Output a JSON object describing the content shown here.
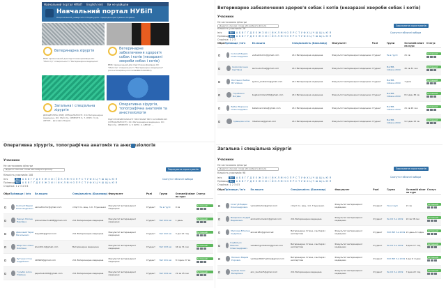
{
  "portal": {
    "nav": [
      "Навчальний портал НУБіП",
      "English (en)",
      "Ви не увійшли"
    ],
    "title": "Навчальний портал НУБіП",
    "subtitle": "Національний університет біоресурсів і природокористування України"
  },
  "tiles": [
    {
      "title": "Ветеринарна хірургія",
      "desc": "ВМК призначений для підготовки фахівців ОС \"Магістр\" спеціальності \"Ветеринарна медицина\""
    },
    {
      "title": "Ветеринарне забезпечення здоров'я собак і котів (незаразні хвороби собак і котів)",
      "desc": "ВМК призначений для підготовки фахівців ОС \"Магістр\" спеціальності \"Ветеринарна медицина\" (kod-article/title-prim=1994B6755455B7)"
    },
    {
      "title": "Загальна і спеціальна хірургія",
      "desc": "ДИСЦИПЛІНА (PRE) СПЕЦІАЛЬНОСТІ: 211 Ветеринарна медицина. ОС: Магістр. СЕМЕСТР: 6, 7. КУРС: 3 (4). АВТОР: , Дічкевич Вадим"
    },
    {
      "title": "Оперативна хірургія, топографічна анатомія та анестезіологія",
      "desc": "ПІДГОТОВЧИЙ ВАРІАНТ ПРОГРАМИ ТИП=12348665265 (СПЕЦІАЛЬНОСТІ): 211 Ветеринарна медицина. ОС: Магістр. СЕМЕСТР: 4, 5 КУРС: 4. АВТОР: ..."
    }
  ],
  "sections": [
    {
      "title": "Ветеринарне забезпечення здоров'я собак і котів (незаразні хвороби собак і котів)",
      "participants": "Учасники",
      "filters_label": "Не застосовано фільтри",
      "filter_placeholder": "Додати ключові слова або вибрати фільтр",
      "enrol_button": "Зарахувати користувачів",
      "count": "Кількість учасників: 26",
      "reset_link": "Скинути табличні вибори",
      "all": "Всі",
      "row_name": "Ім'я",
      "row_surname": "Прізвище",
      "page": "Сторінка: 1 2 3",
      "columns": [
        "Обрати",
        "Прізвище / Ім'я",
        "Ел.пошта",
        "Спеціальність (Бакалавр)",
        "Факультет",
        "Ролі",
        "Групи",
        "Останній візит на курс",
        "Статус"
      ],
      "rows": [
        {
          "name": "Сологуб Вадим Олександрович",
          "email": "vadvetdoctor@gmail.com",
          "spec": "211 Ветеринарна медицина",
          "fac": "Факультет ветеринарної медицини",
          "role": "Студент",
          "group": "Не в групі",
          "visit": "21 хв",
          "status": "Активний"
        },
        {
          "name": "Скорохід Анна Сергіївна",
          "email": "annna.bohna@gmail.com",
          "spec": "211 Ветеринарна медицина",
          "fac": "Факультет ветеринарної медицини",
          "role": "Студент",
          "group": "МагВМ-Собаки-2019",
          "visit": "45 хв 31 сек",
          "status": "Активний"
        },
        {
          "name": "Костенко Любов Віталіївна",
          "email": "lyubov_kostenko@gmail.com",
          "spec": "211 Ветеринарна медицина",
          "fac": "Факультет ветеринарної медицини",
          "role": "Студент",
          "group": "МагВМ-Собаки-2019",
          "visit": "7 днів",
          "status": "Активний"
        },
        {
          "name": "Горобенко Богдан",
          "email": "bogdanmiks1234@gmail.com",
          "spec": "211 Ветеринарна медицина",
          "fac": "Факультет ветеринарної медицини",
          "role": "Студент",
          "group": "МагВМ-Собаки-2019",
          "visit": "8 годин 36 хв",
          "status": "Активний"
        },
        {
          "name": "Бабак Вероніка Олександрівна",
          "email": "babakveronika@gmail.com",
          "spec": "211 Ветеринарна медицина",
          "fac": "Факультет ветеринарної медицини",
          "role": "Студент",
          "group": "МагВМ-Собаки-2019",
          "visit": "21 хв 29 сек",
          "status": "Активний"
        },
        {
          "name": "Кравцова Алла",
          "email": "mballaone@gmail.com",
          "spec": "211 Ветеринарна медицина",
          "fac": "Факультет ветеринарної медицини",
          "role": "Студент",
          "group": "МагВМ-Собаки-2019",
          "visit": "9 годин 15 хв",
          "status": "Активний"
        }
      ]
    },
    {
      "title": "Оперативна хірургія, топографічна анатомія та анестезіологія",
      "participants": "Учасники",
      "filters_label": "Не застосовано фільтри",
      "filter_placeholder": "Додати ключові слова або вибрати фільтр",
      "enrol_button": "Зарахувати користувачів",
      "count": "Кількість учасників: 108",
      "reset_link": "Скинути табличні вибори",
      "all": "Всі",
      "row_name": "Ім'я",
      "row_surname": "Прізвище",
      "page": "Сторінка: 1 2 3 4 5 6",
      "columns": [
        "Обрати",
        "Прізвище / Ім'я",
        "Ел.пошта",
        "Спеціальність (Бакалавр)",
        "Факультет",
        "Ролі",
        "Групи",
        "Останній візит на курс",
        "Статус"
      ],
      "rows": [
        {
          "name": "Сологуб Вадим Олександрович",
          "email": "vadvetdoctor@gmail.com",
          "spec": "спорт по. вкщ. 1.0. Глушченко",
          "fac": "Факультет ветеринарної медицини",
          "role": "Студент",
          "group": "Не в групі",
          "visit": "9 хв",
          "status": "Активний"
        },
        {
          "name": "Левчук Поліна Павлівна",
          "email": "polinamlevchuk98@gmail.com",
          "spec": "211 Ветеринарна медицина",
          "fac": "Факультет ветеринарної медицини",
          "role": "Студент",
          "group": "Вет 401 вм",
          "visit": "1 день",
          "status": "Активний"
        },
        {
          "name": "Дичковий Тарас Васильович",
          "email": "foxyw04@gmail.com",
          "spec": "211 Ветеринарна медицина",
          "fac": "Факультет ветеринарної медицини",
          "role": "Студент",
          "group": "Вет 402 вм",
          "visit": "3 дні 12 год",
          "status": "Активний"
        },
        {
          "name": "Шерстюк Аліна Олегівна",
          "email": "sherst111@gmail.com",
          "spec": "Ветеринарна медицина",
          "fac": "Факультет ветеринарної медицини",
          "role": "Студент",
          "group": "Вет 403 вм",
          "visit": "44 хв 31 сек",
          "status": "Активний"
        },
        {
          "name": "Лутченко Ігор Андрійович",
          "email": "lut9999@gmail.com",
          "spec": "211 Ветеринарна медицина",
          "fac": "Факультет ветеринарної медицини",
          "role": "Студент",
          "group": "Вет 401 вм",
          "visit": "8 годин 27 хв",
          "status": "Активний"
        },
        {
          "name": "Гульбіо Аліса Юріївна",
          "email": "pepsihulio009@gmail.com",
          "spec": "211 Ветеринарна медицина",
          "fac": "Факультет ветеринарної медицини",
          "role": "Студент",
          "group": "Вет 404 вм",
          "visit": "21 хв 25 сек",
          "status": "Активний"
        }
      ]
    },
    {
      "title": "Загальна і спеціальна хірургія",
      "participants": "Учасники",
      "filters_label": "Не застосовано фільтри",
      "filter_placeholder": "Додати ключові слова або вибрати фільтр",
      "enrol_button": "Зарахувати користувачів",
      "count": "Кількість учасників: 98",
      "reset_link": "Скинути табличні вибори",
      "all": "Всі",
      "row_name": "Ім'я",
      "row_surname": "Прізвище",
      "page": "Сторінка: 1 2 3 4 5",
      "columns": [
        "Обрати",
        "Прізвище / Ім'я",
        "Ел.пошта",
        "Спеціальність (Бакалавр)",
        "Факультет",
        "Ролі",
        "Групи",
        "Останній візит на курс",
        "Статус"
      ],
      "rows": [
        {
          "name": "Сологуб Вадим Олександрович",
          "email": "vadvetdoctor@gmail.com",
          "spec": "спорт по. вкщ. 1.0. Глушченко",
          "fac": "Факультет ветеринарної медицини",
          "role": "Студент",
          "group": "Не в групі",
          "visit": "21 хв",
          "status": "Активний"
        },
        {
          "name": "Вазарович Андрій Вадимович",
          "email": "andrazdrumvelm@gmail.com",
          "spec": "211 Ветеринарна медицина",
          "fac": "Факультет ветеринарної медицини",
          "role": "Студент",
          "group": "Зв СК 3-я 2019",
          "visit": "22 хв 38 сек",
          "status": "Активний"
        },
        {
          "name": "Маслова Віталіна Андріївна",
          "email": "aniva1981@gmail.net",
          "spec": "Ветеринарна гігієна, санітарія і експертиза",
          "fac": "Факультет ветеринарної медицини",
          "role": "Студент",
          "group": "ЗСК ВМ 3-я 2019",
          "visit": "21 день 6 годин",
          "status": "Активний"
        },
        {
          "name": "Горбатько Максим Олександрович",
          "email": "velekamgorbatvko@gmail.com",
          "spec": "Ветеринарна гігієна, санітарія і експертиза",
          "fac": "Факультет ветеринарної медицини",
          "role": "Студент",
          "group": "Зв СК 3-я 2019",
          "visit": "8 днів 17 год",
          "status": "Активний"
        },
        {
          "name": "Лисенко Вадим Ігорович",
          "email": "vadlisen8947vetmp@gmail.com",
          "spec": "Ветеринарна гігієна, санітарія і експертиза",
          "fac": "Факультет ветеринарної медицини",
          "role": "Студент",
          "group": "ЗСК ВМ 3-я 2019",
          "visit": "4 дні 6 годин",
          "status": "Активний"
        },
        {
          "name": "Кушнір Анна Валеріївна",
          "email": "ann_kushnir5@gmail.com",
          "spec": "211 Ветеринарна медицина",
          "fac": "Факультет ветеринарної медицини",
          "role": "Студент",
          "group": "Зв СК 3-я 2019",
          "visit": "7 днів 22 год",
          "status": "Активний"
        },
        {
          "name": "Рибчук Катерина",
          "email": "katryb2000@gmail.com",
          "spec": "211 Ветеринарна медицина",
          "fac": "Факультет ветеринарної медицини",
          "role": "Студент",
          "group": "Зв СК 3-я 2019",
          "visit": "1 день",
          "status": "Активний"
        }
      ]
    }
  ],
  "alphabet": [
    "А",
    "Б",
    "В",
    "Г",
    "Ґ",
    "Д",
    "Е",
    "Є",
    "Ж",
    "З",
    "И",
    "І",
    "Ї",
    "Й",
    "К",
    "Л",
    "М",
    "Н",
    "О",
    "П",
    "Р",
    "С",
    "Т",
    "У",
    "Ф",
    "Х",
    "Ц",
    "Ч",
    "Ш",
    "Щ",
    "Ь",
    "Ю",
    "Я"
  ]
}
